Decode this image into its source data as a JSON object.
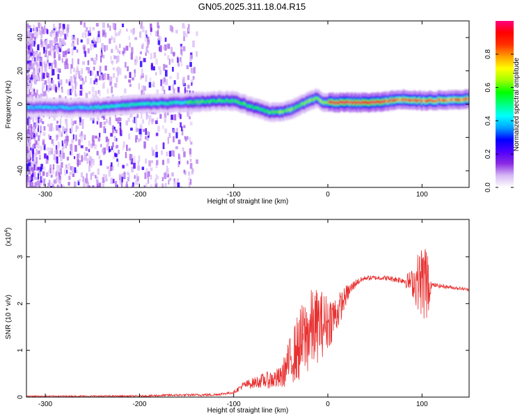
{
  "title": "GN05.2025.311.18.04.R15",
  "chart_data": [
    {
      "type": "heatmap",
      "name": "spectrogram",
      "xlabel": "Height of straight line (km)",
      "ylabel": "Frequency (Hz)",
      "xlim": [
        -320,
        150
      ],
      "ylim": [
        -50,
        50
      ],
      "xticks": [
        -300,
        -200,
        -100,
        0,
        100
      ],
      "yticks": [
        -40,
        -20,
        0,
        20,
        40
      ],
      "xtick_labels": [
        "-300",
        "-200",
        "-100",
        "0",
        "100"
      ],
      "ytick_labels": [
        "-40",
        "-20",
        "0",
        "20",
        "40"
      ],
      "ridge": {
        "description_points_x": [
          -320,
          -250,
          -200,
          -150,
          -120,
          -100,
          -80,
          -60,
          -45,
          -35,
          -20,
          -12,
          -5,
          0,
          50,
          80,
          100,
          150
        ],
        "frequency_hz": [
          -2,
          -2,
          0,
          1,
          2,
          2,
          -2,
          -5,
          -4,
          -2,
          2,
          4,
          1,
          1,
          1,
          3,
          2,
          3
        ]
      },
      "colorbar": {
        "label": "Normalized spectral amplitude",
        "range": [
          0,
          1
        ],
        "ticks": [
          0.0,
          0.2,
          0.4,
          0.6,
          0.8
        ],
        "tick_labels": [
          "0.0",
          "0.2",
          "0.4",
          "0.6",
          "0.8"
        ],
        "stops": [
          "#ffffff",
          "#d7b9f5",
          "#8a2be2",
          "#5000ff",
          "#0000ff",
          "#00a0ff",
          "#00ffff",
          "#00ff80",
          "#00ff00",
          "#a0ff00",
          "#ffff00",
          "#ffa000",
          "#ff3000",
          "#ff0000",
          "#ff0080"
        ]
      }
    },
    {
      "type": "line",
      "name": "snr",
      "xlabel": "Height of straight line (km)",
      "ylabel": "SNR (10 * v/v)",
      "multiplier_label": "(x10",
      "multiplier_exp": "4",
      "multiplier_close": ")",
      "xlim": [
        -320,
        150
      ],
      "ylim": [
        0,
        3.8
      ],
      "xticks": [
        -300,
        -200,
        -100,
        0,
        100
      ],
      "yticks": [
        0,
        1,
        2,
        3
      ],
      "xtick_labels": [
        "-300",
        "-200",
        "-100",
        "0",
        "100"
      ],
      "ytick_labels": [
        "0",
        "1",
        "2",
        "3"
      ],
      "color": "#e83030",
      "envelope_x": [
        -320,
        -200,
        -170,
        -120,
        -100,
        -90,
        -70,
        -50,
        -40,
        -30,
        -20,
        -10,
        0,
        10,
        20,
        30,
        40,
        60,
        80,
        90,
        100,
        105,
        110,
        150
      ],
      "envelope_y": [
        0.02,
        0.02,
        0.04,
        0.05,
        0.1,
        0.25,
        0.35,
        0.4,
        0.8,
        1.1,
        1.4,
        1.55,
        1.6,
        1.8,
        2.2,
        2.45,
        2.55,
        2.55,
        2.5,
        2.45,
        2.5,
        2.45,
        2.4,
        2.3
      ],
      "noise_x": [
        -320,
        -100,
        -90,
        -70,
        -50,
        -40,
        -30,
        -20,
        -10,
        0,
        10,
        20,
        30,
        40,
        60,
        80,
        90,
        95,
        100,
        105,
        108,
        110,
        150
      ],
      "noise_amp": [
        0.01,
        0.03,
        0.08,
        0.15,
        0.25,
        0.5,
        0.8,
        0.9,
        0.8,
        0.6,
        0.4,
        0.2,
        0.08,
        0.05,
        0.05,
        0.08,
        0.3,
        0.6,
        0.8,
        1.0,
        0.4,
        0.05,
        0.03
      ]
    }
  ]
}
